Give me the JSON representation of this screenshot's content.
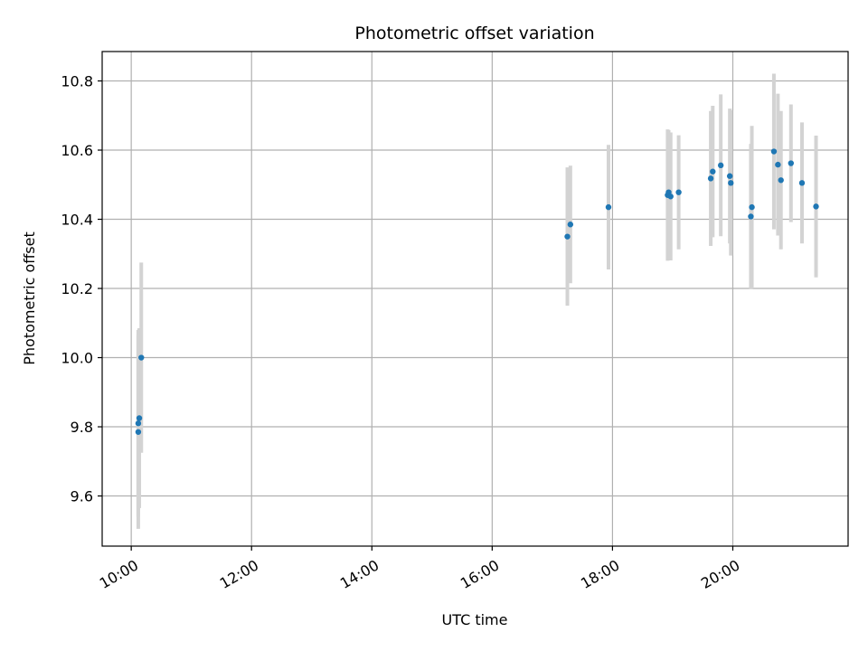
{
  "chart_data": {
    "type": "scatter",
    "title": "Photometric offset variation",
    "xlabel": "UTC time",
    "ylabel": "Photometric offset",
    "xlim": [
      "09:31",
      "21:55"
    ],
    "ylim": [
      9.455,
      10.885
    ],
    "x_ticks": [
      "10:00",
      "12:00",
      "14:00",
      "16:00",
      "18:00",
      "20:00"
    ],
    "y_ticks": [
      9.6,
      9.8,
      10.0,
      10.2,
      10.4,
      10.6,
      10.8
    ],
    "grid": true,
    "colors": {
      "points": "#1f77b4",
      "errorbars": "#d3d3d3",
      "grid": "#b0b0b0"
    },
    "series": [
      {
        "points": [
          {
            "x": "10:07",
            "y": 9.785,
            "err": 0.28
          },
          {
            "x": "10:07",
            "y": 9.81,
            "err": 0.27
          },
          {
            "x": "10:08",
            "y": 9.825,
            "err": 0.26
          },
          {
            "x": "10:10",
            "y": 10.0,
            "err": 0.275
          },
          {
            "x": "17:15",
            "y": 10.35,
            "err": 0.2
          },
          {
            "x": "17:18",
            "y": 10.385,
            "err": 0.17
          },
          {
            "x": "17:56",
            "y": 10.435,
            "err": 0.18
          },
          {
            "x": "18:55",
            "y": 10.47,
            "err": 0.19
          },
          {
            "x": "18:56",
            "y": 10.478,
            "err": 0.18
          },
          {
            "x": "18:58",
            "y": 10.466,
            "err": 0.185
          },
          {
            "x": "19:06",
            "y": 10.478,
            "err": 0.165
          },
          {
            "x": "19:38",
            "y": 10.518,
            "err": 0.195
          },
          {
            "x": "19:40",
            "y": 10.538,
            "err": 0.19
          },
          {
            "x": "19:48",
            "y": 10.556,
            "err": 0.205
          },
          {
            "x": "19:57",
            "y": 10.525,
            "err": 0.195
          },
          {
            "x": "19:58",
            "y": 10.505,
            "err": 0.21
          },
          {
            "x": "20:18",
            "y": 10.408,
            "err": 0.21
          },
          {
            "x": "20:19",
            "y": 10.435,
            "err": 0.235
          },
          {
            "x": "20:41",
            "y": 10.596,
            "err": 0.225
          },
          {
            "x": "20:45",
            "y": 10.558,
            "err": 0.205
          },
          {
            "x": "20:48",
            "y": 10.513,
            "err": 0.2
          },
          {
            "x": "20:58",
            "y": 10.562,
            "err": 0.17
          },
          {
            "x": "21:09",
            "y": 10.505,
            "err": 0.175
          },
          {
            "x": "21:23",
            "y": 10.437,
            "err": 0.205
          }
        ]
      }
    ]
  }
}
